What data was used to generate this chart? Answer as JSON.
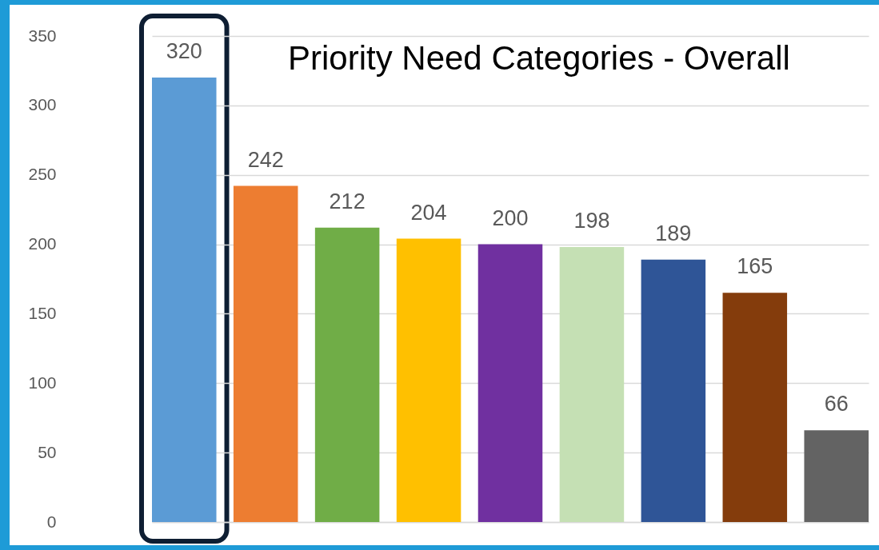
{
  "chart_data": {
    "type": "bar",
    "title": "Priority Need Categories - Overall",
    "categories": [
      null,
      null,
      null,
      null,
      null,
      null,
      null,
      null,
      null
    ],
    "values": [
      320,
      242,
      212,
      204,
      200,
      198,
      189,
      165,
      66
    ],
    "colors": [
      "#5b9bd5",
      "#ed7d31",
      "#70ad47",
      "#ffc000",
      "#7030a0",
      "#c5e0b4",
      "#2f5597",
      "#843c0c",
      "#636363"
    ],
    "ylim": [
      0,
      350
    ],
    "yticks": [
      0,
      50,
      100,
      150,
      200,
      250,
      300,
      350
    ],
    "grid": "y",
    "data_labels": true,
    "tick_labels": "y"
  }
}
